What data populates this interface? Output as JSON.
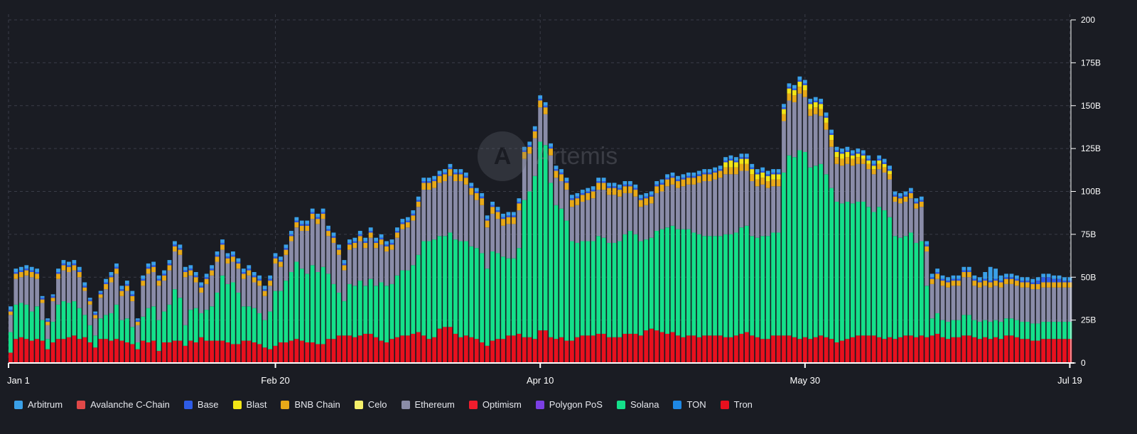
{
  "watermark": {
    "logo_glyph": "A",
    "text": "Artemis"
  },
  "chart_data": {
    "type": "bar",
    "stacked": true,
    "title": "",
    "xlabel": "",
    "ylabel": "",
    "ylim": [
      0,
      200
    ],
    "y_unit": "B",
    "y_ticks": [
      "0",
      "25B",
      "50B",
      "75B",
      "100B",
      "125B",
      "150B",
      "175B",
      "200"
    ],
    "x_ticks": [
      {
        "index": 0,
        "label": "Jan 1"
      },
      {
        "index": 50,
        "label": "Feb 20"
      },
      {
        "index": 100,
        "label": "Apr 10"
      },
      {
        "index": 150,
        "label": "May 30"
      },
      {
        "index": 200,
        "label": "Jul 19"
      }
    ],
    "grid": true,
    "legend_position": "bottom",
    "series_meta": [
      {
        "name": "Arbitrum",
        "color": "#3aa0e8"
      },
      {
        "name": "Avalanche C-Chain",
        "color": "#e04848"
      },
      {
        "name": "Base",
        "color": "#2e5ce6"
      },
      {
        "name": "Blast",
        "color": "#f2e516"
      },
      {
        "name": "BNB Chain",
        "color": "#e8a918"
      },
      {
        "name": "Celo",
        "color": "#f5f06a"
      },
      {
        "name": "Ethereum",
        "color": "#8a8ca8"
      },
      {
        "name": "Optimism",
        "color": "#ef1d2d"
      },
      {
        "name": "Polygon PoS",
        "color": "#7b3fe4"
      },
      {
        "name": "Solana",
        "color": "#14e08a"
      },
      {
        "name": "TON",
        "color": "#1e88e5"
      },
      {
        "name": "Tron",
        "color": "#e8101e"
      }
    ],
    "days": 201,
    "tron": [
      6,
      14,
      15,
      14,
      13,
      14,
      13,
      8,
      12,
      14,
      14,
      15,
      16,
      14,
      15,
      12,
      9,
      14,
      14,
      13,
      14,
      13,
      12,
      11,
      8,
      13,
      12,
      13,
      7,
      12,
      12,
      13,
      13,
      10,
      13,
      12,
      15,
      13,
      13,
      13,
      13,
      12,
      11,
      11,
      13,
      13,
      12,
      11,
      9,
      8,
      10,
      12,
      12,
      13,
      14,
      13,
      12,
      12,
      11,
      11,
      14,
      14,
      16,
      16,
      16,
      15,
      16,
      17,
      17,
      15,
      13,
      12,
      14,
      15,
      16,
      16,
      17,
      18,
      16,
      14,
      15,
      20,
      21,
      21,
      17,
      15,
      16,
      15,
      14,
      12,
      10,
      13,
      14,
      14,
      16,
      16,
      17,
      15,
      15,
      14,
      19,
      19,
      15,
      14,
      15,
      13,
      13,
      15,
      16,
      16,
      16,
      17,
      17,
      15,
      15,
      15,
      17,
      17,
      17,
      16,
      19,
      20,
      19,
      18,
      17,
      18,
      16,
      15,
      16,
      16,
      15,
      16,
      16,
      16,
      16,
      15,
      15,
      16,
      17,
      18,
      16,
      15,
      14,
      14,
      16,
      16,
      16,
      16,
      15,
      14,
      15,
      14,
      15,
      16,
      15,
      14,
      12,
      13,
      14,
      15,
      16,
      16,
      16,
      16,
      15,
      14,
      15,
      14,
      15,
      16,
      16,
      15,
      16,
      15,
      16,
      17,
      15,
      14,
      15,
      15,
      16,
      16,
      15,
      14,
      15,
      14,
      15,
      14,
      16,
      16,
      15,
      14,
      14,
      13,
      13,
      14,
      14,
      14,
      14,
      14,
      14
    ],
    "solana": [
      12,
      20,
      20,
      20,
      17,
      19,
      12,
      6,
      12,
      20,
      22,
      20,
      20,
      18,
      13,
      10,
      7,
      12,
      14,
      16,
      20,
      12,
      14,
      10,
      4,
      14,
      20,
      20,
      18,
      18,
      22,
      30,
      25,
      12,
      18,
      20,
      14,
      18,
      20,
      28,
      38,
      34,
      36,
      30,
      20,
      20,
      20,
      18,
      16,
      22,
      32,
      30,
      36,
      40,
      45,
      42,
      40,
      45,
      42,
      45,
      38,
      32,
      25,
      20,
      30,
      30,
      32,
      28,
      32,
      30,
      34,
      33,
      32,
      36,
      38,
      38,
      40,
      45,
      55,
      57,
      57,
      54,
      53,
      55,
      55,
      56,
      55,
      53,
      53,
      52,
      45,
      52,
      50,
      48,
      45,
      45,
      50,
      80,
      85,
      95,
      110,
      108,
      90,
      78,
      75,
      70,
      58,
      55,
      55,
      55,
      55,
      57,
      56,
      55,
      55,
      56,
      58,
      60,
      58,
      55,
      53,
      53,
      58,
      60,
      62,
      62,
      62,
      63,
      62,
      60,
      60,
      58,
      58,
      58,
      58,
      60,
      60,
      60,
      62,
      62,
      58,
      58,
      60,
      60,
      60,
      60,
      95,
      105,
      105,
      110,
      108,
      100,
      100,
      100,
      95,
      88,
      82,
      80,
      80,
      78,
      78,
      78,
      75,
      72,
      76,
      75,
      70,
      60,
      58,
      58,
      60,
      55,
      55,
      30,
      10,
      12,
      10,
      10,
      10,
      10,
      12,
      12,
      10,
      10,
      10,
      10,
      10,
      10,
      10,
      10,
      10,
      10,
      10,
      10,
      10,
      10,
      10,
      10,
      10,
      10,
      10
    ],
    "ethereum": [
      10,
      15,
      15,
      17,
      20,
      16,
      10,
      8,
      12,
      15,
      18,
      18,
      18,
      18,
      14,
      12,
      10,
      12,
      15,
      18,
      18,
      14,
      16,
      15,
      10,
      18,
      20,
      20,
      20,
      18,
      20,
      22,
      25,
      28,
      20,
      15,
      12,
      15,
      18,
      18,
      15,
      12,
      12,
      14,
      16,
      18,
      15,
      16,
      14,
      15,
      16,
      14,
      15,
      18,
      20,
      22,
      25,
      27,
      28,
      28,
      22,
      24,
      22,
      18,
      20,
      22,
      23,
      22,
      24,
      22,
      22,
      20,
      20,
      22,
      24,
      25,
      26,
      28,
      30,
      30,
      30,
      31,
      32,
      33,
      34,
      35,
      33,
      30,
      28,
      28,
      24,
      22,
      20,
      18,
      20,
      20,
      22,
      24,
      22,
      22,
      20,
      18,
      16,
      16,
      16,
      18,
      20,
      22,
      23,
      24,
      25,
      27,
      28,
      28,
      28,
      26,
      24,
      22,
      22,
      20,
      20,
      20,
      22,
      22,
      24,
      24,
      24,
      25,
      26,
      28,
      30,
      32,
      32,
      33,
      34,
      35,
      35,
      34,
      33,
      32,
      32,
      30,
      30,
      28,
      27,
      27,
      30,
      32,
      32,
      33,
      32,
      30,
      30,
      28,
      26,
      24,
      22,
      22,
      22,
      22,
      22,
      22,
      22,
      22,
      22,
      22,
      22,
      20,
      20,
      20,
      20,
      20,
      20,
      20,
      20,
      20,
      20,
      20,
      20,
      20,
      22,
      22,
      20,
      20,
      20,
      20,
      20,
      20,
      20,
      20,
      20,
      20,
      20,
      20,
      20,
      20,
      20,
      20,
      20,
      20,
      20
    ],
    "bnb": [
      2,
      3,
      3,
      3,
      3,
      3,
      2,
      2,
      2,
      3,
      3,
      3,
      3,
      3,
      2,
      2,
      2,
      2,
      3,
      3,
      3,
      3,
      3,
      3,
      2,
      3,
      3,
      3,
      3,
      3,
      3,
      3,
      3,
      3,
      3,
      3,
      3,
      3,
      3,
      3,
      3,
      3,
      3,
      3,
      3,
      3,
      3,
      3,
      3,
      3,
      3,
      3,
      3,
      3,
      3,
      3,
      3,
      3,
      3,
      3,
      3,
      3,
      3,
      3,
      3,
      3,
      3,
      3,
      3,
      3,
      3,
      3,
      3,
      3,
      3,
      3,
      3,
      3,
      4,
      4,
      4,
      4,
      4,
      4,
      4,
      4,
      4,
      4,
      4,
      4,
      4,
      4,
      4,
      4,
      4,
      4,
      4,
      4,
      4,
      4,
      4,
      4,
      4,
      4,
      4,
      4,
      4,
      4,
      4,
      4,
      4,
      4,
      4,
      4,
      4,
      4,
      4,
      4,
      4,
      4,
      4,
      4,
      4,
      4,
      4,
      4,
      4,
      4,
      4,
      4,
      4,
      4,
      4,
      4,
      4,
      4,
      4,
      4,
      4,
      4,
      4,
      4,
      4,
      4,
      4,
      4,
      4,
      4,
      4,
      4,
      4,
      4,
      4,
      4,
      4,
      4,
      4,
      4,
      4,
      4,
      4,
      3,
      3,
      3,
      3,
      3,
      3,
      3,
      3,
      3,
      3,
      3,
      3,
      3,
      3,
      3,
      3,
      3,
      3,
      3,
      3,
      3,
      3,
      3,
      3,
      3,
      3,
      3,
      3,
      3,
      3,
      3,
      3,
      3,
      3,
      3,
      3,
      3,
      3,
      3,
      3
    ],
    "arbitrum": [
      2,
      2,
      2,
      2,
      2,
      2,
      1,
      1,
      1,
      2,
      2,
      2,
      2,
      2,
      2,
      1,
      1,
      1,
      2,
      2,
      2,
      2,
      2,
      2,
      1,
      2,
      2,
      2,
      2,
      2,
      2,
      2,
      2,
      2,
      2,
      2,
      2,
      2,
      2,
      2,
      2,
      2,
      2,
      2,
      2,
      2,
      2,
      2,
      2,
      2,
      2,
      2,
      2,
      2,
      2,
      2,
      2,
      2,
      2,
      2,
      2,
      2,
      2,
      2,
      2,
      2,
      2,
      2,
      2,
      2,
      2,
      2,
      2,
      2,
      2,
      2,
      2,
      2,
      2,
      2,
      2,
      2,
      2,
      2,
      2,
      2,
      2,
      2,
      2,
      2,
      2,
      2,
      2,
      2,
      2,
      2,
      2,
      2,
      2,
      2,
      2,
      2,
      2,
      2,
      2,
      2,
      2,
      2,
      2,
      2,
      2,
      2,
      2,
      2,
      2,
      2,
      2,
      2,
      2,
      2,
      2,
      2,
      2,
      2,
      2,
      2,
      2,
      2,
      2,
      2,
      2,
      2,
      2,
      2,
      2,
      2,
      2,
      2,
      2,
      2,
      2,
      2,
      2,
      2,
      2,
      2,
      2,
      2,
      2,
      2,
      2,
      2,
      2,
      2,
      2,
      2,
      2,
      2,
      2,
      2,
      2,
      2,
      2,
      2,
      2,
      2,
      2,
      2,
      2,
      2,
      2,
      2,
      2,
      2,
      2,
      2,
      2,
      2,
      2,
      2,
      2,
      2,
      2,
      2,
      4,
      8,
      6,
      3,
      2,
      2,
      2,
      2,
      2,
      2,
      2,
      2,
      2,
      2,
      2,
      2,
      2,
      2,
      2,
      2,
      2
    ],
    "base": [
      1,
      1,
      1,
      1,
      1,
      1,
      1,
      1,
      1,
      1,
      1,
      1,
      1,
      1,
      1,
      1,
      1,
      1,
      1,
      1,
      1,
      1,
      1,
      1,
      1,
      1,
      1,
      1,
      1,
      1,
      1,
      1,
      1,
      1,
      1,
      1,
      1,
      1,
      1,
      1,
      1,
      1,
      1,
      1,
      1,
      1,
      1,
      1,
      1,
      1,
      1,
      1,
      1,
      1,
      1,
      1,
      1,
      1,
      1,
      1,
      1,
      1,
      1,
      1,
      1,
      1,
      1,
      1,
      1,
      1,
      1,
      1,
      1,
      1,
      1,
      1,
      1,
      1,
      1,
      1,
      1,
      1,
      1,
      1,
      1,
      1,
      1,
      1,
      1,
      1,
      1,
      1,
      1,
      1,
      1,
      1,
      1,
      1,
      1,
      1,
      1,
      1,
      1,
      1,
      1,
      1,
      1,
      1,
      1,
      1,
      1,
      1,
      1,
      1,
      1,
      1,
      1,
      1,
      1,
      1,
      1,
      1,
      1,
      1,
      1,
      1,
      1,
      1,
      1,
      1,
      1,
      1,
      1,
      1,
      1,
      1,
      1,
      1,
      1,
      1,
      1,
      1,
      1,
      1,
      1,
      1,
      1,
      1,
      1,
      1,
      1,
      1,
      1,
      1,
      1,
      1,
      1,
      1,
      1,
      1,
      1,
      1,
      1,
      1,
      1,
      1,
      1,
      1,
      1,
      1,
      1,
      1,
      1,
      1,
      1,
      1,
      1,
      1,
      1,
      1,
      1,
      1,
      1,
      1,
      1,
      1,
      1,
      1,
      1,
      1,
      1,
      1,
      1,
      1,
      2,
      3,
      3,
      2,
      2,
      1,
      1
    ],
    "blast": [
      0,
      0,
      0,
      0,
      0,
      0,
      0,
      0,
      0,
      0,
      0,
      0,
      0,
      0,
      0,
      0,
      0,
      0,
      0,
      0,
      0,
      0,
      0,
      0,
      0,
      0,
      0,
      0,
      0,
      0,
      0,
      0,
      0,
      0,
      0,
      0,
      0,
      0,
      0,
      0,
      0,
      0,
      0,
      0,
      0,
      0,
      0,
      0,
      0,
      0,
      0,
      0,
      0,
      0,
      0,
      0,
      0,
      0,
      0,
      0,
      0,
      0,
      0,
      0,
      0,
      0,
      0,
      0,
      0,
      0,
      0,
      0,
      0,
      0,
      0,
      0,
      0,
      0,
      0,
      0,
      0,
      0,
      0,
      0,
      0,
      0,
      0,
      0,
      0,
      0,
      0,
      0,
      0,
      0,
      0,
      0,
      0,
      0,
      0,
      0,
      0,
      0,
      0,
      0,
      0,
      0,
      0,
      0,
      0,
      0,
      0,
      0,
      0,
      0,
      0,
      0,
      0,
      0,
      0,
      0,
      0,
      0,
      0,
      0,
      0,
      0,
      0,
      0,
      0,
      0,
      0,
      0,
      0,
      0,
      0,
      3,
      4,
      3,
      3,
      3,
      3,
      3,
      3,
      3,
      3,
      3,
      3,
      3,
      3,
      3,
      3,
      3,
      3,
      3,
      3,
      3,
      3,
      3,
      3,
      2,
      2,
      2,
      2,
      2,
      2,
      2,
      2,
      0,
      0,
      0,
      0,
      0,
      0,
      0,
      0,
      0,
      0,
      0,
      0,
      0,
      0,
      0,
      0,
      0,
      0,
      0,
      0,
      0,
      0,
      0,
      0,
      0,
      0,
      0,
      0,
      0,
      0,
      0,
      0,
      0,
      0,
      0,
      0,
      0
    ]
  }
}
